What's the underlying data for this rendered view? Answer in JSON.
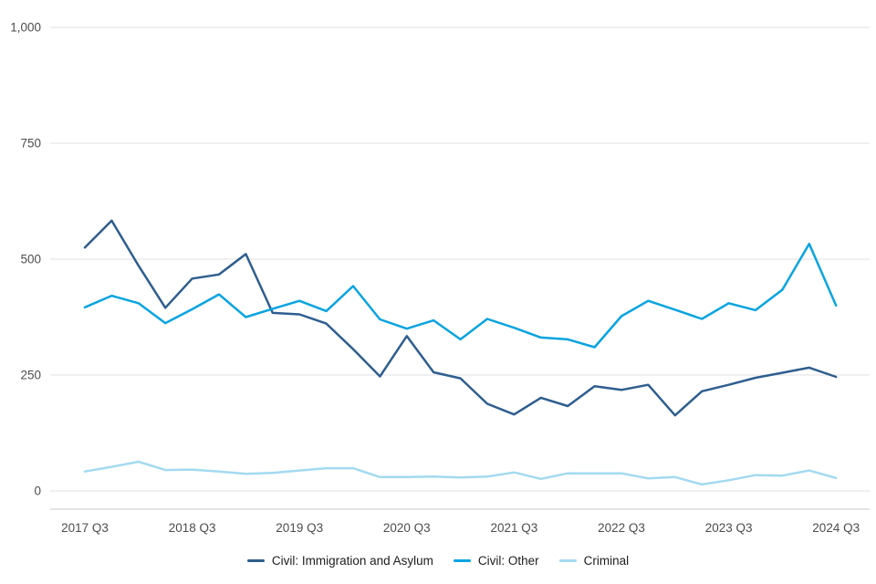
{
  "chart_data": {
    "type": "line",
    "title": "",
    "xlabel": "",
    "ylabel": "",
    "ylim": [
      0,
      1000
    ],
    "grid": "horizontal",
    "legend_position": "bottom",
    "axis_label_color": "#4d4d4d",
    "gridline_color": "#e2e2e2",
    "axisline_color": "#c9c9c9",
    "y_ticks": [
      0,
      250,
      500,
      750,
      1000
    ],
    "y_tick_labels": [
      "0",
      "250",
      "500",
      "750",
      "1,000"
    ],
    "x_tick_labels": [
      "2017 Q3",
      "2018 Q3",
      "2019 Q3",
      "2020 Q3",
      "2021 Q3",
      "2022 Q3",
      "2023 Q3",
      "2024 Q3"
    ],
    "x": [
      "2017 Q3",
      "2017 Q4",
      "2018 Q1",
      "2018 Q2",
      "2018 Q3",
      "2018 Q4",
      "2019 Q1",
      "2019 Q2",
      "2019 Q3",
      "2019 Q4",
      "2020 Q1",
      "2020 Q2",
      "2020 Q3",
      "2020 Q4",
      "2021 Q1",
      "2021 Q2",
      "2021 Q3",
      "2021 Q4",
      "2022 Q1",
      "2022 Q2",
      "2022 Q3",
      "2022 Q4",
      "2023 Q1",
      "2023 Q2",
      "2023 Q3",
      "2023 Q4",
      "2024 Q1",
      "2024 Q2",
      "2024 Q3"
    ],
    "series": [
      {
        "name": "Civil: Immigration and Asylum",
        "color": "#2e5e8f",
        "values": [
          525,
          583,
          486,
          395,
          458,
          467,
          511,
          384,
          381,
          361,
          306,
          247,
          334,
          256,
          243,
          188,
          165,
          201,
          183,
          226,
          218,
          229,
          163,
          215,
          229,
          244,
          255,
          266,
          246
        ]
      },
      {
        "name": "Civil: Other",
        "color": "#09a4e0",
        "values": [
          396,
          421,
          405,
          362,
          392,
          424,
          375,
          393,
          410,
          388,
          442,
          370,
          350,
          368,
          327,
          371,
          352,
          331,
          327,
          310,
          377,
          410,
          391,
          371,
          405,
          390,
          434,
          533,
          400
        ]
      },
      {
        "name": "Criminal",
        "color": "#a3daf0",
        "values": [
          42,
          52,
          63,
          45,
          46,
          42,
          37,
          39,
          44,
          49,
          49,
          30,
          30,
          31,
          29,
          31,
          40,
          26,
          38,
          38,
          38,
          27,
          30,
          14,
          23,
          34,
          33,
          44,
          28
        ]
      }
    ]
  }
}
